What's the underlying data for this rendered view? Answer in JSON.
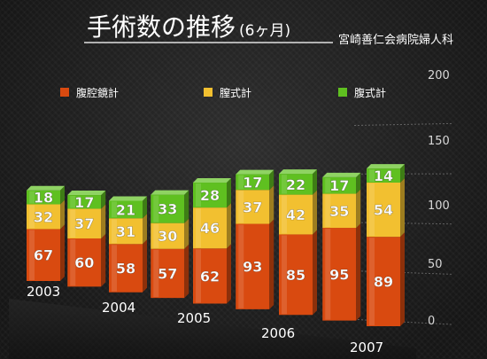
{
  "header": {
    "title": "手術数の推移",
    "title_suffix": "(6ヶ月)",
    "organization": "宮崎善仁会病院婦人科"
  },
  "chart_data": {
    "type": "bar",
    "stacked": true,
    "categories": [
      "2003",
      "",
      "2004",
      "",
      "2005",
      "",
      "2006",
      "",
      "2007"
    ],
    "x_tick_labels": [
      "2003",
      "2004",
      "2005",
      "2006",
      "2007"
    ],
    "series": [
      {
        "name": "腹腔鏡計",
        "color": "#d94a10",
        "values": [
          67,
          60,
          58,
          57,
          62,
          93,
          85,
          95,
          89
        ]
      },
      {
        "name": "膣式計",
        "color": "#f2c030",
        "values": [
          32,
          37,
          31,
          30,
          46,
          37,
          42,
          35,
          54
        ]
      },
      {
        "name": "腹式計",
        "color": "#5fc020",
        "values": [
          18,
          17,
          21,
          33,
          28,
          17,
          22,
          17,
          14
        ]
      }
    ],
    "ylim": [
      0,
      200
    ],
    "yticks": [
      0,
      50,
      100,
      150,
      200
    ],
    "legend_position": "top",
    "grid": false
  }
}
